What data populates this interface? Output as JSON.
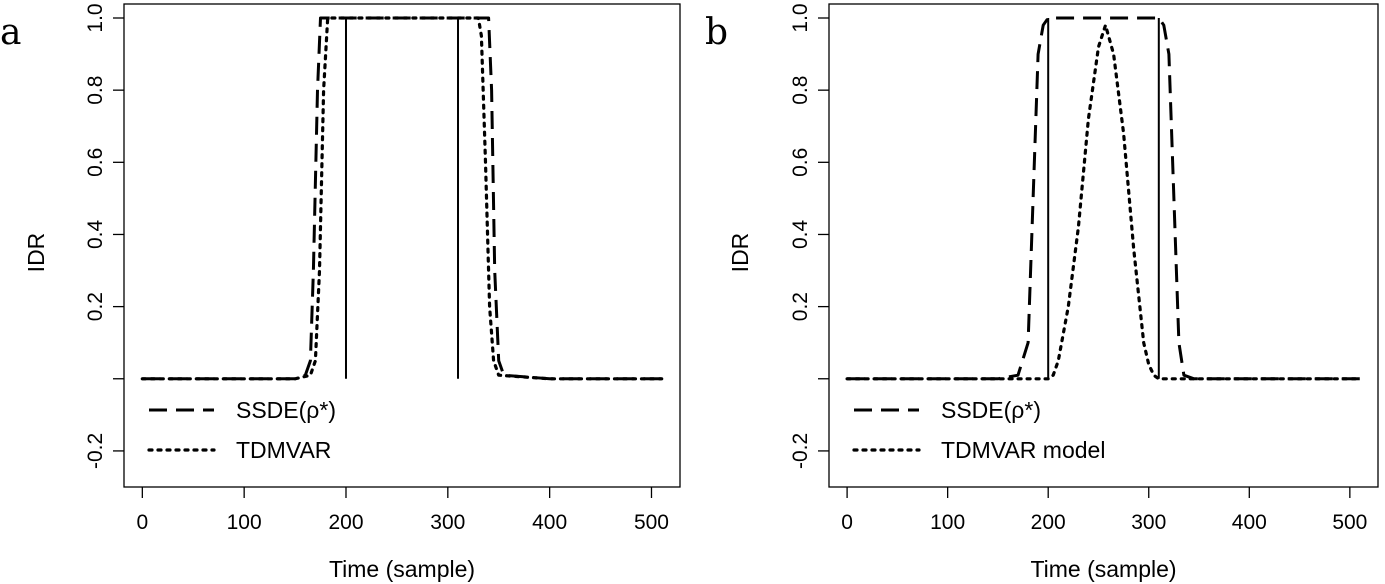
{
  "chart_data": [
    {
      "type": "line",
      "panel_label": "a",
      "xlabel": "Time (sample)",
      "ylabel": "IDR",
      "xlim": [
        -18,
        528
      ],
      "ylim": [
        -0.3,
        1.0
      ],
      "x_ticks": [
        "0",
        "100",
        "200",
        "300",
        "400",
        "500"
      ],
      "y_ticks": [
        "-0.2",
        "0.2",
        "0.4",
        "0.6",
        "0.8",
        "1.0"
      ],
      "legend_position": "bottom-left",
      "grid": false,
      "truth": {
        "line_style": "solid",
        "x": [
          200,
          310
        ],
        "y": [
          0,
          1
        ]
      },
      "series": [
        {
          "name": "SSDE(ρ*)",
          "line_style": "dashed",
          "x": [
            0,
            50,
            100,
            150,
            160,
            165,
            168,
            172,
            175,
            340,
            343,
            346,
            350,
            355,
            400,
            450,
            510
          ],
          "y": [
            0,
            0,
            0,
            0,
            0.01,
            0.05,
            0.3,
            0.8,
            1.0,
            1.0,
            0.8,
            0.3,
            0.05,
            0.01,
            0,
            0,
            0
          ]
        },
        {
          "name": "TDMVAR",
          "line_style": "dotted",
          "x": [
            0,
            50,
            100,
            150,
            165,
            170,
            174,
            178,
            182,
            330,
            333,
            337,
            341,
            345,
            350,
            400,
            450,
            510
          ],
          "y": [
            0,
            0,
            0,
            0,
            0.01,
            0.05,
            0.3,
            0.8,
            1.0,
            1.0,
            0.95,
            0.6,
            0.2,
            0.05,
            0.01,
            0,
            0,
            0
          ]
        }
      ]
    },
    {
      "type": "line",
      "panel_label": "b",
      "xlabel": "Time (sample)",
      "ylabel": "IDR",
      "xlim": [
        -18,
        528
      ],
      "ylim": [
        -0.3,
        1.0
      ],
      "x_ticks": [
        "0",
        "100",
        "200",
        "300",
        "400",
        "500"
      ],
      "y_ticks": [
        "-0.2",
        "0.2",
        "0.4",
        "0.6",
        "0.8",
        "1.0"
      ],
      "legend_position": "bottom-left",
      "grid": false,
      "truth": {
        "line_style": "solid",
        "x": [
          200,
          310
        ],
        "y": [
          0,
          1
        ]
      },
      "series": [
        {
          "name": "SSDE(ρ*)",
          "line_style": "dashed",
          "x": [
            0,
            50,
            100,
            150,
            170,
            180,
            185,
            190,
            195,
            200,
            310,
            315,
            320,
            325,
            330,
            335,
            345,
            400,
            450,
            510
          ],
          "y": [
            0,
            0,
            0,
            0,
            0.01,
            0.1,
            0.5,
            0.9,
            0.98,
            1.0,
            1.0,
            0.98,
            0.9,
            0.5,
            0.1,
            0.01,
            0,
            0,
            0,
            0
          ]
        },
        {
          "name": "TDMVAR model",
          "line_style": "dotted",
          "x": [
            0,
            50,
            100,
            150,
            200,
            205,
            210,
            220,
            230,
            240,
            250,
            257,
            265,
            275,
            285,
            295,
            300,
            305,
            310,
            350,
            400,
            450,
            510
          ],
          "y": [
            0,
            0,
            0,
            0,
            0,
            0.01,
            0.05,
            0.2,
            0.42,
            0.72,
            0.92,
            0.98,
            0.9,
            0.68,
            0.36,
            0.1,
            0.04,
            0.01,
            0,
            0,
            0,
            0,
            0
          ]
        }
      ]
    }
  ]
}
